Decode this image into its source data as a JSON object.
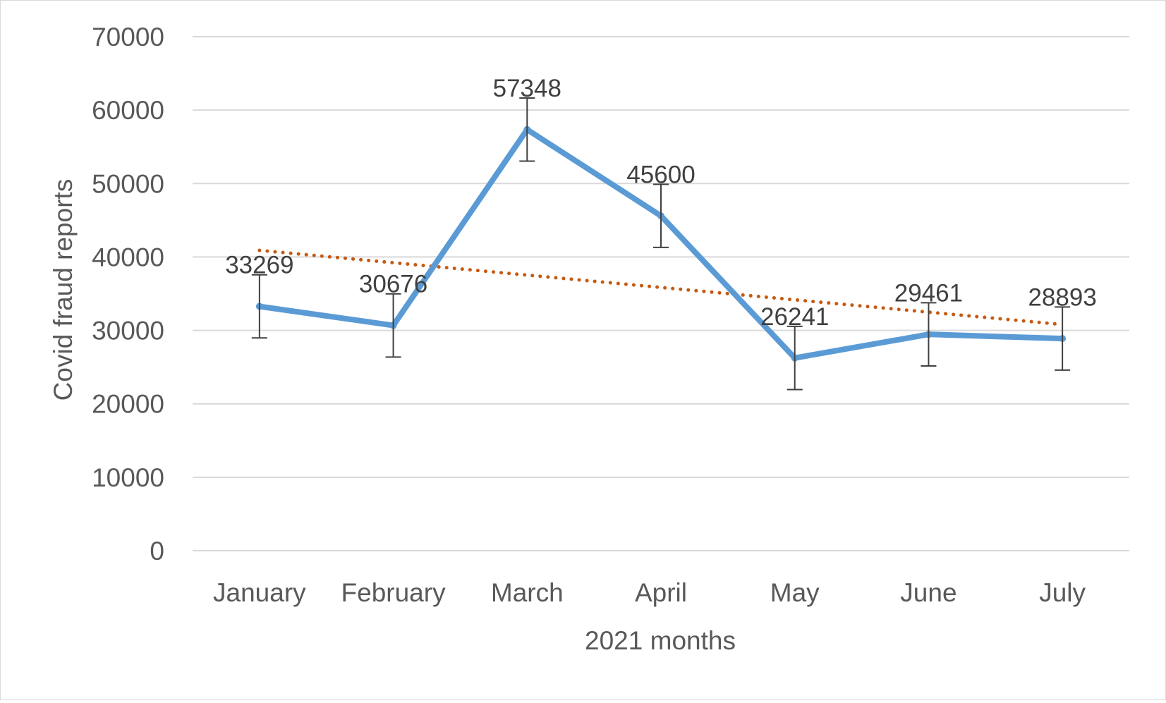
{
  "chart_data": {
    "type": "line",
    "title": "",
    "xlabel": "2021 months",
    "ylabel": "Covid fraud reports",
    "categories": [
      "January",
      "February",
      "March",
      "April",
      "May",
      "June",
      "July"
    ],
    "series": [
      {
        "values": [
          33269,
          30676,
          57348,
          45600,
          26241,
          29461,
          28893
        ],
        "data_labels": [
          "33269",
          "30676",
          "57348",
          "45600",
          "26241",
          "29461",
          "28893"
        ],
        "error_bars": [
          4300,
          4300,
          4300,
          4300,
          4300,
          4300,
          4300
        ],
        "color": "#5b9bd5"
      }
    ],
    "trendline": {
      "type": "linear",
      "color": "#c55a11",
      "style": "dotted",
      "start": 40900,
      "end": 30800
    },
    "ylim": [
      0,
      70000
    ],
    "yticks": [
      "0",
      "10000",
      "20000",
      "30000",
      "40000",
      "50000",
      "60000",
      "70000"
    ],
    "grid": true,
    "legend": "none",
    "gridline_color": "#d9d9d9",
    "errorbar_color": "#404040"
  }
}
